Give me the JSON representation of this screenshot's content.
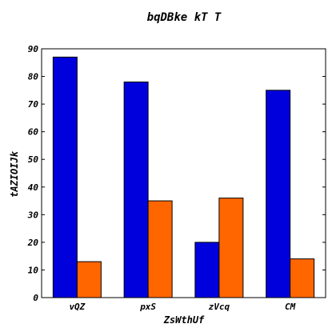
{
  "chart_data": {
    "type": "bar",
    "title": "bqDBke kT T",
    "xlabel": "ZsWthUf",
    "ylabel": "tAZIOIJk",
    "categories": [
      "vQZ",
      "pxS",
      "zVcq",
      "CM"
    ],
    "series": [
      {
        "values": [
          87,
          78,
          20,
          75
        ],
        "color": "#0000dd"
      },
      {
        "values": [
          13,
          35,
          36,
          14
        ],
        "color": "#ff6600"
      }
    ],
    "ylim": [
      0,
      90
    ],
    "yticks": [
      0,
      10,
      20,
      30,
      40,
      50,
      60,
      70,
      80,
      90
    ],
    "grid": false,
    "legend": "none"
  }
}
